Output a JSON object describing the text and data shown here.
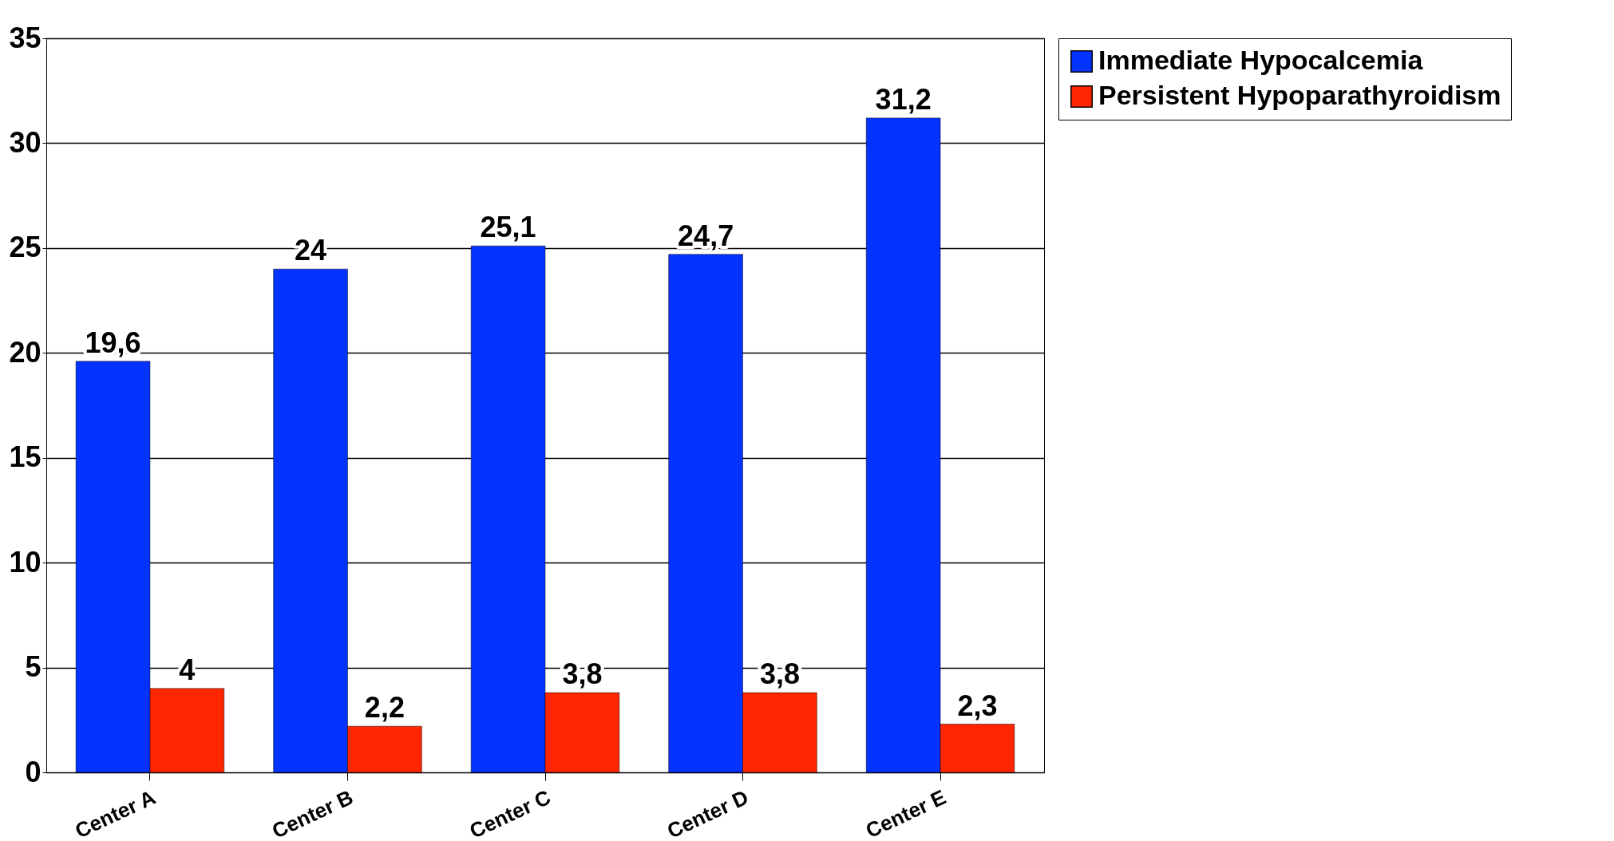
{
  "chart_data": {
    "type": "bar",
    "categories": [
      "Center A",
      "Center B",
      "Center C",
      "Center D",
      "Center E"
    ],
    "series": [
      {
        "name": "Immediate Hypocalcemia",
        "color": "#0433ff",
        "values": [
          19.6,
          24,
          25.1,
          24.7,
          31.2
        ],
        "value_labels": [
          "19,6",
          "24",
          "25,1",
          "24,7",
          "31,2"
        ]
      },
      {
        "name": "Persistent Hypoparathyroidism",
        "color": "#ff2600",
        "values": [
          4,
          2.2,
          3.8,
          3.8,
          2.3
        ],
        "value_labels": [
          "4",
          "2,2",
          "3,8",
          "3,8",
          "2,3"
        ]
      }
    ],
    "ylim": [
      0,
      35
    ],
    "yticks": [
      0,
      5,
      10,
      15,
      20,
      25,
      30,
      35
    ],
    "grid": "y",
    "legend": "right"
  }
}
